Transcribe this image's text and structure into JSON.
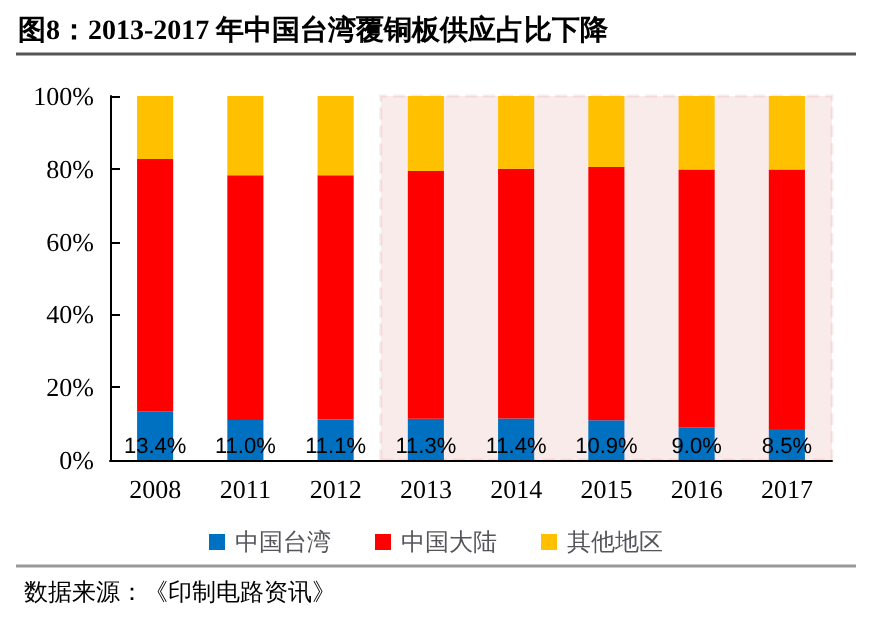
{
  "chart_data": {
    "type": "bar",
    "stacked": true,
    "title": "图8：2013-2017 年中国台湾覆铜板供应占比下降",
    "categories": [
      "2008",
      "2011",
      "2012",
      "2013",
      "2014",
      "2015",
      "2016",
      "2017"
    ],
    "series": [
      {
        "name": "中国台湾",
        "color": "#0070c0",
        "values": [
          13.4,
          11.0,
          11.1,
          11.3,
          11.4,
          10.9,
          9.0,
          8.5
        ],
        "value_labels": [
          "13.4%",
          "11.0%",
          "11.1%",
          "11.3%",
          "11.4%",
          "10.9%",
          "9.0%",
          "8.5%"
        ]
      },
      {
        "name": "中国大陆",
        "color": "#ff0000",
        "values": [
          69.3,
          67.2,
          67.1,
          68.1,
          68.6,
          69.6,
          70.8,
          71.3
        ]
      },
      {
        "name": "其他地区",
        "color": "#ffc000",
        "values": [
          17.3,
          21.8,
          21.8,
          20.6,
          20.0,
          19.5,
          20.2,
          20.2
        ]
      }
    ],
    "ylim": [
      0,
      100
    ],
    "yticks": [
      {
        "value": 0,
        "label": "0%"
      },
      {
        "value": 20,
        "label": "20%"
      },
      {
        "value": 40,
        "label": "40%"
      },
      {
        "value": 60,
        "label": "60%"
      },
      {
        "value": 80,
        "label": "80%"
      },
      {
        "value": 100,
        "label": "100%"
      }
    ],
    "bands": [
      {
        "axis": "x",
        "from": "2013",
        "to": "2017",
        "color": "#c00000"
      }
    ],
    "grid": false,
    "legend": "bottom",
    "annotations": [
      "数据来源：《印制电路资讯》"
    ]
  }
}
